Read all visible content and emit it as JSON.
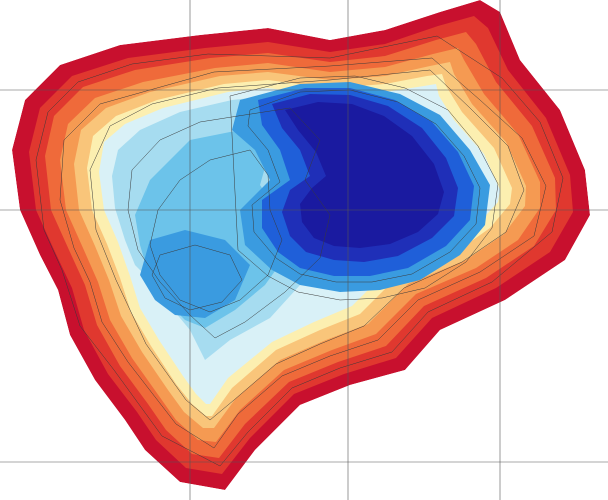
{
  "map": {
    "type": "bathymetric-contour-map",
    "palette": {
      "shore_red": "#c8102e",
      "red": "#e0382f",
      "orange_red": "#ef6a3a",
      "orange": "#f59a52",
      "light_orange": "#f9c57a",
      "pale_yellow": "#fcefb0",
      "pale_cyan": "#d9f1f7",
      "light_blue": "#a6dcf0",
      "sky_blue": "#6cc3ea",
      "medium_blue": "#3a9be0",
      "blue": "#1f5fd9",
      "deep_blue": "#1f2fb8",
      "deepest_blue": "#1a1aa0",
      "contour_line": "#3a3a3a",
      "grid_line": "#555555"
    },
    "grid_labels": {
      "top_1": "",
      "top_2": "",
      "top_3": "",
      "left_1": "",
      "left_2": "",
      "left_3": ""
    }
  }
}
